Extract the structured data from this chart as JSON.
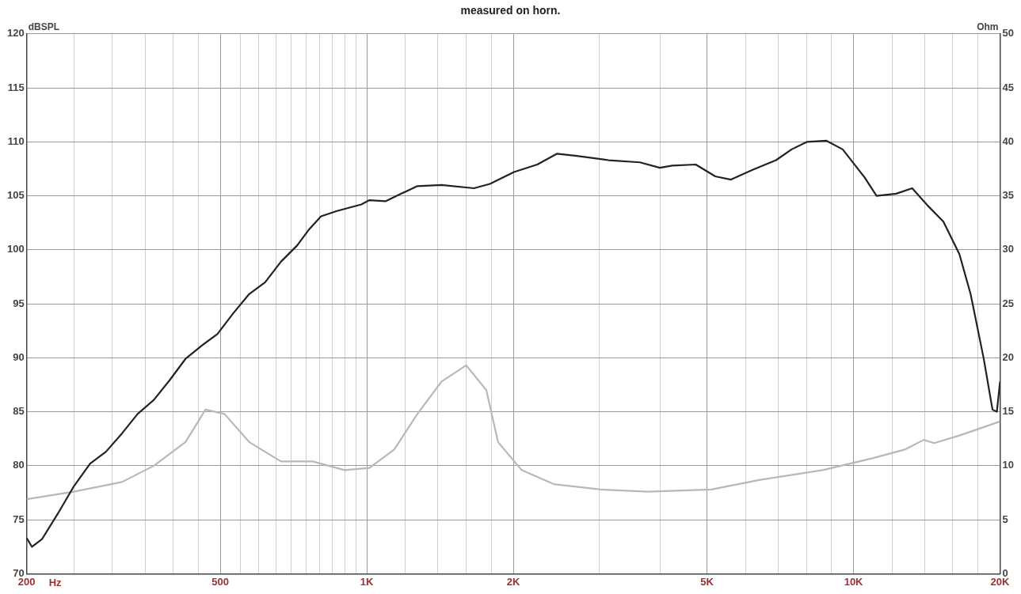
{
  "chart_data": {
    "type": "line",
    "title": "measured on horn.",
    "xlabel": "Hz",
    "ylabel": "dBSPL",
    "y2label": "Ohm",
    "log": "x",
    "grid": true,
    "legend": false,
    "marker": "none",
    "line_style": "solid",
    "xlim": [
      200,
      20000
    ],
    "ylim": [
      70,
      120
    ],
    "y2lim": [
      0,
      50
    ],
    "xticks": [
      200,
      {
        "value": 250,
        "label": null
      },
      {
        "value": 300,
        "label": null
      },
      {
        "value": 350,
        "label": null
      },
      {
        "value": 400,
        "label": null
      },
      {
        "value": 450,
        "label": null
      },
      500,
      {
        "value": 550,
        "label": null
      },
      {
        "value": 600,
        "label": null
      },
      {
        "value": 650,
        "label": null
      },
      {
        "value": 700,
        "label": null
      },
      {
        "value": 750,
        "label": null
      },
      {
        "value": 800,
        "label": null
      },
      {
        "value": 850,
        "label": null
      },
      {
        "value": 900,
        "label": null
      },
      {
        "value": 950,
        "label": null
      },
      {
        "value": 1000,
        "label": "1K"
      },
      {
        "value": 1200,
        "label": null
      },
      {
        "value": 1400,
        "label": null
      },
      {
        "value": 1600,
        "label": null
      },
      {
        "value": 1800,
        "label": null
      },
      {
        "value": 2000,
        "label": "2K"
      },
      {
        "value": 3000,
        "label": null
      },
      {
        "value": 4000,
        "label": null
      },
      {
        "value": 5000,
        "label": "5K"
      },
      {
        "value": 6000,
        "label": null
      },
      {
        "value": 7000,
        "label": null
      },
      {
        "value": 8000,
        "label": null
      },
      {
        "value": 9000,
        "label": null
      },
      {
        "value": 10000,
        "label": "10K"
      },
      {
        "value": 12000,
        "label": null
      },
      {
        "value": 14000,
        "label": null
      },
      {
        "value": 16000,
        "label": null
      },
      {
        "value": 18000,
        "label": null
      },
      {
        "value": 20000,
        "label": "20K"
      }
    ],
    "yticks": [
      70,
      75,
      80,
      85,
      90,
      95,
      100,
      105,
      110,
      115,
      120
    ],
    "y2ticks": [
      0,
      5,
      10,
      15,
      20,
      25,
      30,
      35,
      40,
      45,
      50
    ],
    "series": [
      {
        "color": "#222222",
        "x": [
          200,
          205,
          215,
          232,
          250,
          270,
          291,
          314,
          338,
          365,
          393,
          424,
          457,
          493,
          531,
          573,
          618,
          666,
          719,
          761,
          805,
          868,
          974,
          1012,
          1092,
          1177,
          1270,
          1424,
          1660,
          1790,
          2006,
          2240,
          2460,
          2700,
          3140,
          3640,
          4000,
          4240,
          4740,
          5200,
          5600,
          6200,
          6930,
          7460,
          8030,
          8800,
          9500,
          10540,
          11150,
          12240,
          13200,
          14200,
          15300,
          16500,
          17400,
          18500,
          19300,
          19700,
          20000
        ],
        "values": [
          73.3,
          72.5,
          73.2,
          75.6,
          78.1,
          80.2,
          81.3,
          83,
          84.8,
          86.1,
          87.9,
          89.9,
          91.1,
          92.2,
          94.1,
          95.9,
          97,
          98.9,
          100.4,
          101.9,
          103.1,
          103.6,
          104.2,
          104.6,
          104.5,
          105.2,
          105.9,
          106,
          105.7,
          106.1,
          107.2,
          107.9,
          108.9,
          108.7,
          108.3,
          108.1,
          107.6,
          107.8,
          107.9,
          106.8,
          106.5,
          107.4,
          108.3,
          109.3,
          110,
          110.1,
          109.3,
          106.7,
          105,
          105.2,
          105.7,
          104.1,
          102.6,
          99.6,
          95.9,
          90,
          85.2,
          85,
          87.8
        ]
      },
      {
        "color": "#b8b8b8",
        "axis": "y2",
        "x": [
          200,
          250,
          314,
          365,
          424,
          466,
          510,
          573,
          666,
          774,
          900,
          1012,
          1138,
          1270,
          1424,
          1600,
          1760,
          1860,
          2080,
          2420,
          3025,
          3780,
          5100,
          6430,
          8640,
          10940,
          12740,
          13940,
          14640,
          16500,
          20000
        ],
        "values": [
          6.9,
          7.6,
          8.5,
          10,
          12.2,
          15.2,
          14.8,
          12.2,
          10.4,
          10.4,
          9.6,
          9.8,
          11.5,
          14.8,
          17.8,
          19.3,
          17,
          12.2,
          9.6,
          8.3,
          7.8,
          7.6,
          7.8,
          8.7,
          9.6,
          10.7,
          11.5,
          12.4,
          12.1,
          12.8,
          14.1
        ]
      }
    ]
  }
}
